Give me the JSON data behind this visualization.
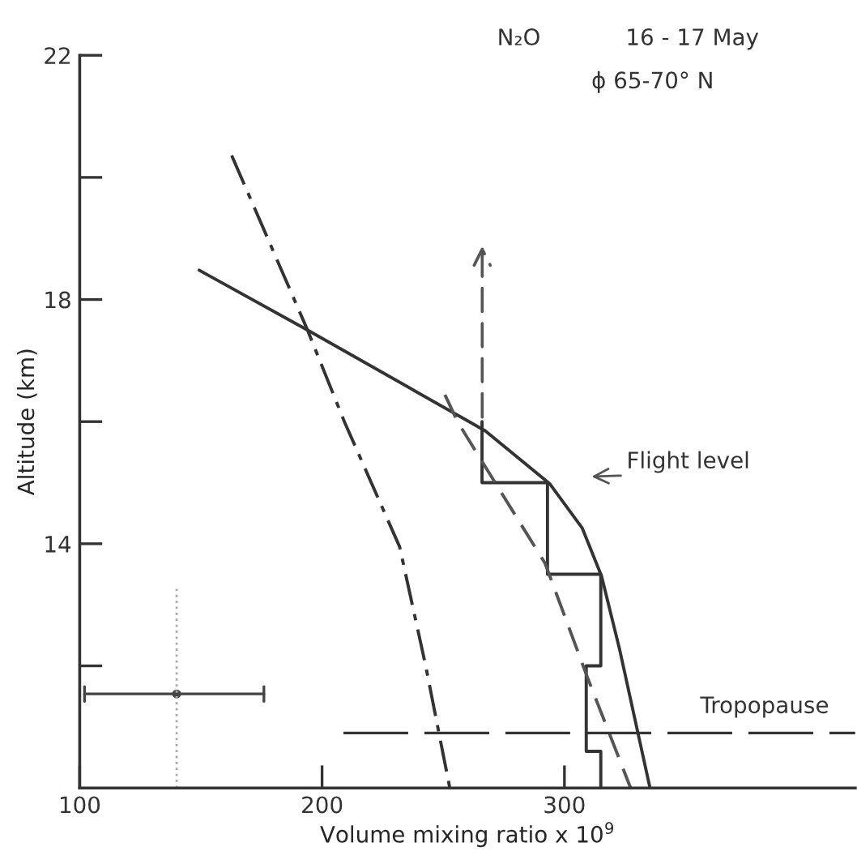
{
  "chart_data": {
    "type": "line",
    "xlabel": "Volume mixing ratio x 10$^{9}$",
    "ylabel": "Altitude (km)",
    "xlim": [
      100,
      420
    ],
    "xticks": [
      100,
      200,
      300
    ],
    "ylim": [
      10,
      22
    ],
    "yticks": [
      {
        "value": 12,
        "label": null
      },
      14,
      {
        "value": 16,
        "label": null
      },
      18,
      {
        "value": 20,
        "label": null
      },
      22
    ],
    "grid": false,
    "legend": false,
    "series": [
      {
        "color": "#333333",
        "line_style": "solid",
        "x": [
          149.3,
          194,
          267.3,
          294,
          307.3,
          315.3,
          322.7,
          335.3
        ],
        "values": [
          18.48,
          17.5,
          15.85,
          14.98,
          14.26,
          13.47,
          12.28,
          10.0
        ]
      },
      {
        "color": "#333333",
        "line_style": "solid",
        "x": [
          266,
          266,
          293,
          293,
          315,
          315,
          309,
          309,
          315,
          315
        ],
        "values": [
          16.0,
          15.0,
          15.0,
          13.5,
          13.5,
          12.0,
          12.0,
          10.6,
          10.6,
          10.0
        ]
      },
      {
        "color": "#555555",
        "line_style": "dashed",
        "x": [
          250.7,
          256,
          292,
          309.3,
          327.3
        ],
        "values": [
          16.44,
          15.99,
          13.68,
          11.83,
          10.0
        ]
      },
      {
        "color": "#333333",
        "line_style": "dashdot",
        "x": [
          162.7,
          194,
          209.3,
          232,
          242.7,
          252.7
        ],
        "values": [
          20.36,
          17.5,
          15.99,
          13.95,
          12.01,
          10.0
        ]
      },
      {
        "type": "scatter",
        "color": "#444444",
        "marker": "circle",
        "x": [
          140
        ],
        "values": [
          11.54
        ],
        "xerrors": [
          [
            102,
            176
          ]
        ],
        "errors": [
          [
            10.0,
            13.3
          ]
        ]
      }
    ],
    "ref_lines": [
      {
        "axis": "y",
        "value": 10.9,
        "label": "Tropopause",
        "color": "#333333",
        "line_style": "dashed"
      }
    ],
    "annotations": [
      "N₂O",
      "16 - 17 May",
      "ϕ 65-70° N",
      "Flight level"
    ]
  }
}
